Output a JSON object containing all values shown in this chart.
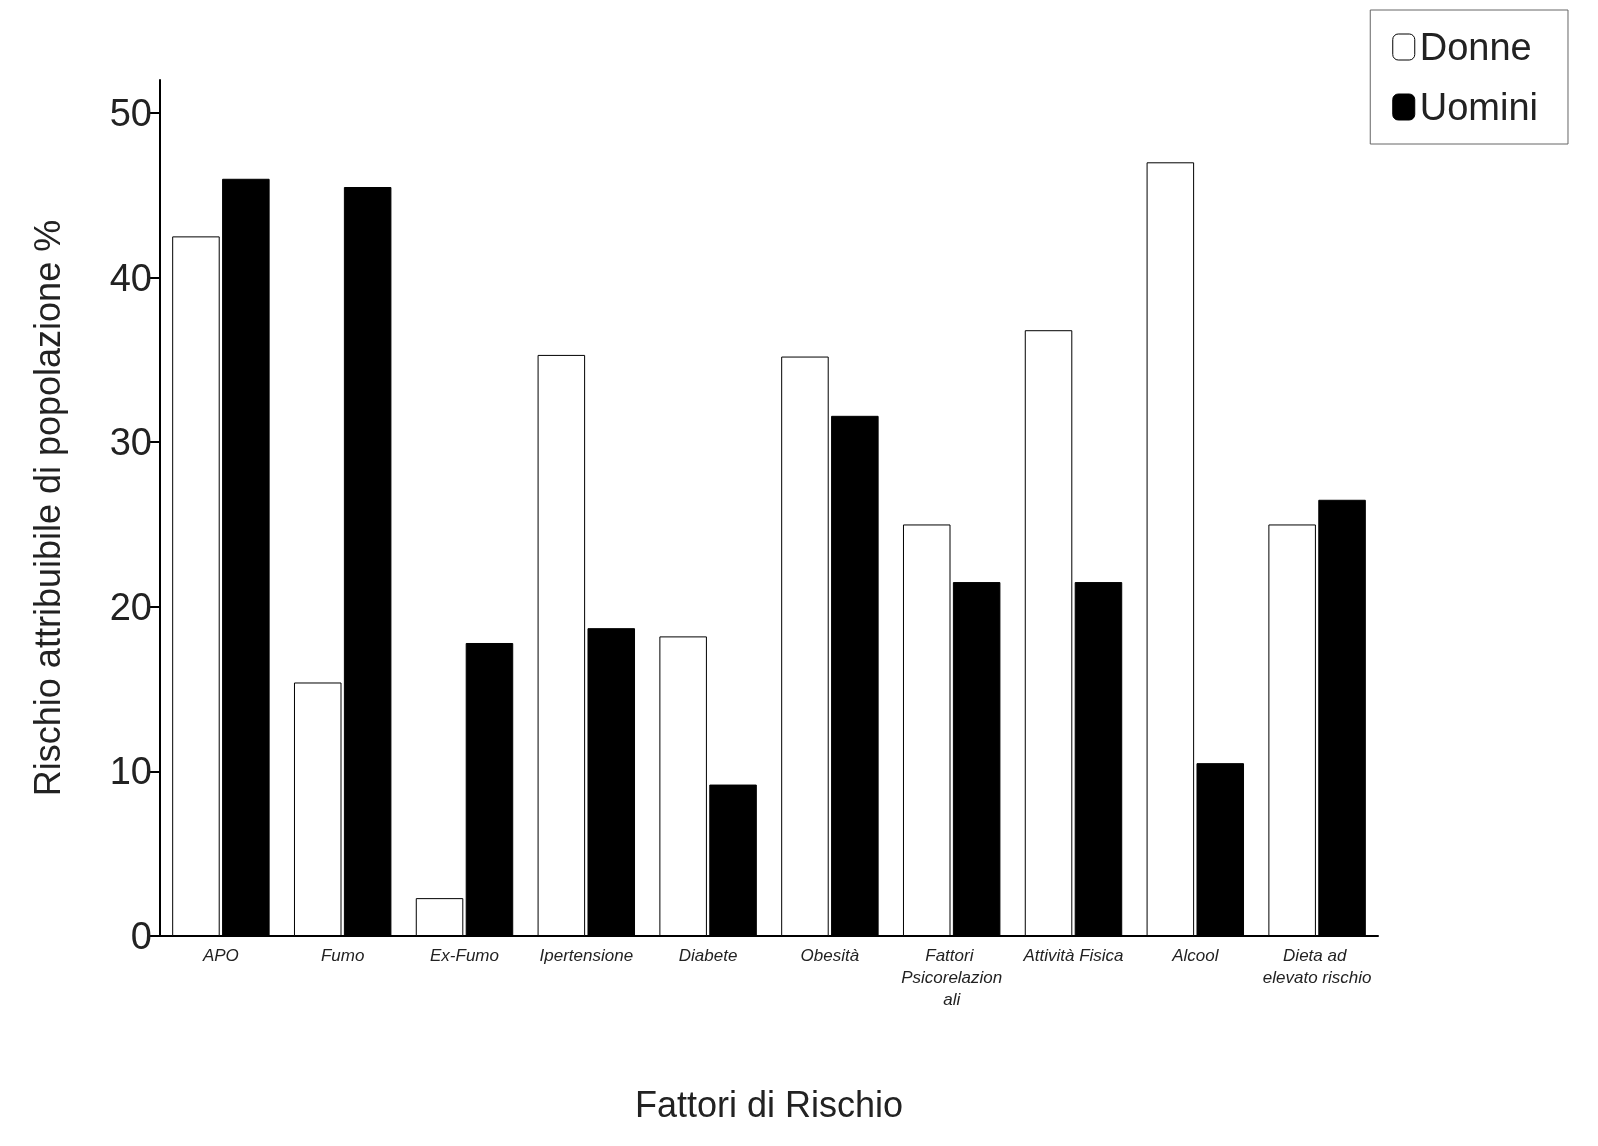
{
  "chart_data": {
    "type": "bar",
    "xlabel": "Fattori di Rischio",
    "ylabel": "Rischio attribuibile di popolazione %",
    "categories": [
      "APO",
      "Fumo",
      "Ex-Fumo",
      "Ipertensione",
      "Diabete",
      "Obesità",
      "Fattori Psicorelazionali",
      "Attività Fisica",
      "Alcool",
      "Dieta ad elevato rischio"
    ],
    "series": [
      {
        "name": "Donne",
        "color": "#ffffff",
        "values": [
          42.5,
          15.4,
          2.3,
          35.3,
          18.2,
          35.2,
          25.0,
          36.8,
          47.0,
          25.0
        ]
      },
      {
        "name": "Uomini",
        "color": "#000000",
        "values": [
          46.0,
          45.5,
          17.8,
          18.7,
          9.2,
          31.6,
          21.5,
          21.5,
          10.5,
          26.5
        ]
      }
    ],
    "ylim": [
      0,
      52
    ],
    "yticks": [
      0,
      10,
      20,
      30,
      40,
      50
    ],
    "grid": false,
    "legend": "top right"
  }
}
